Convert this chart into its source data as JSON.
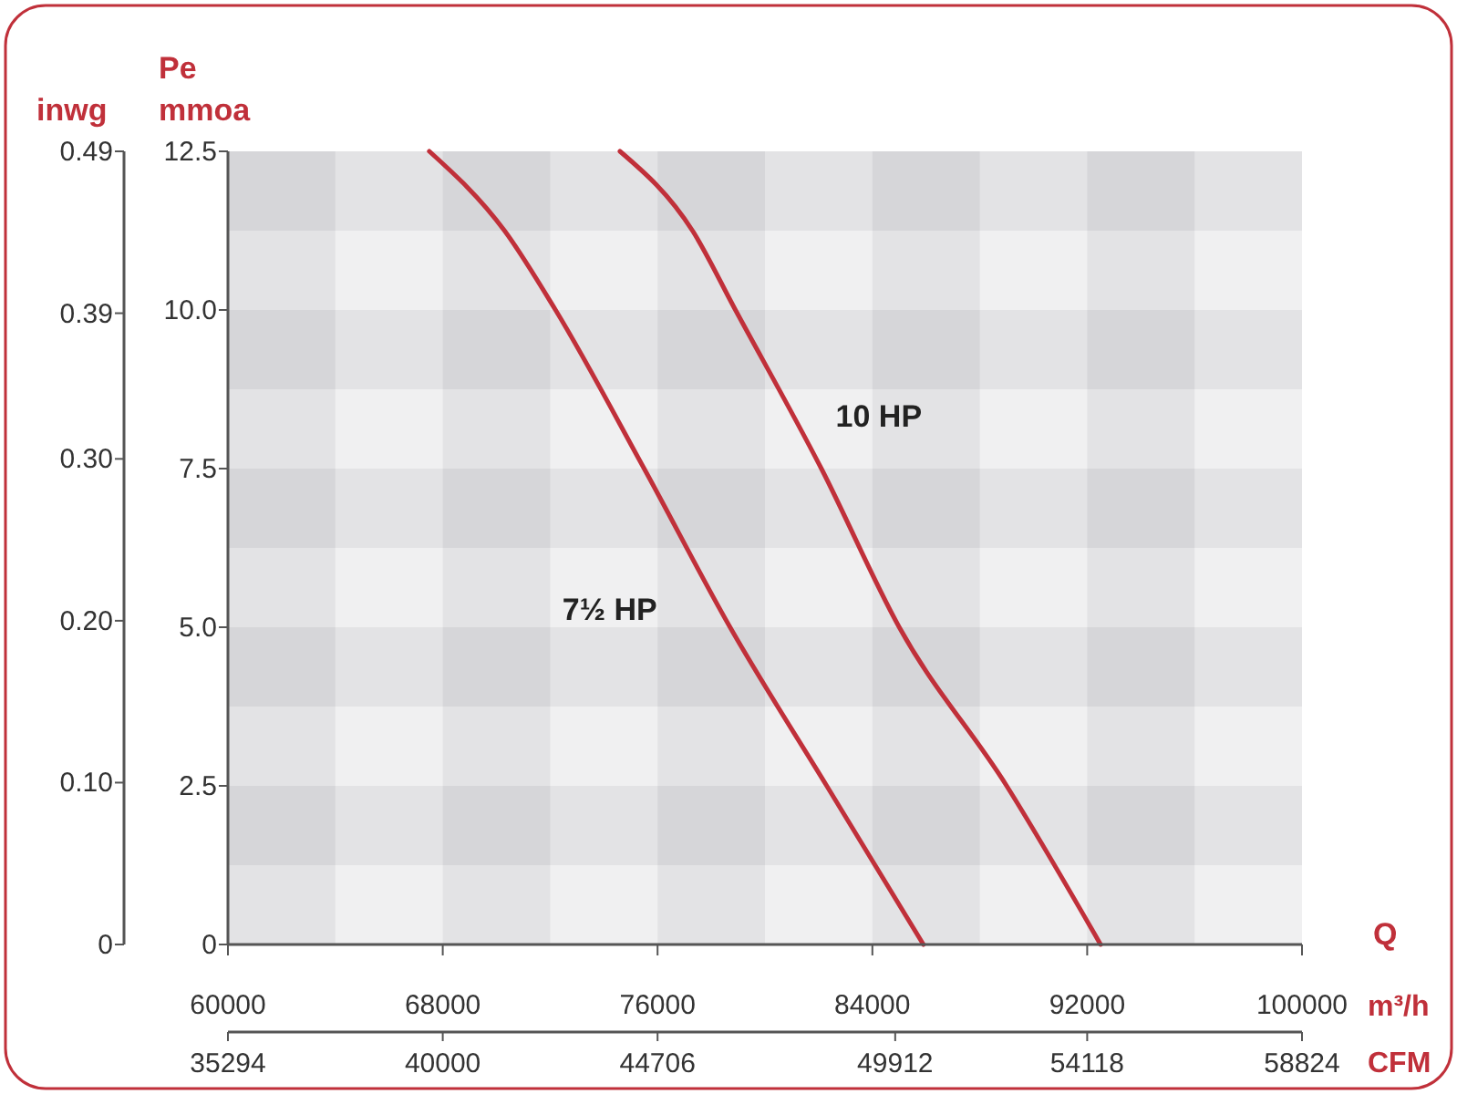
{
  "chart_data": {
    "type": "line",
    "xlabel": "m³/h",
    "x2label": "CFM",
    "ylabel": "Pe mmoa",
    "y2label": "inwg",
    "annotations": [
      "Q"
    ],
    "xlim": [
      60000,
      100000
    ],
    "xticks": [
      60000,
      68000,
      76000,
      84000,
      92000,
      100000
    ],
    "x2lim": [
      35294,
      58824
    ],
    "x2ticks": [
      35294,
      40000,
      44706,
      49912,
      54118,
      58824
    ],
    "ylim": [
      0,
      12.5
    ],
    "yticks": [
      {
        "value": 0,
        "label": "0"
      },
      {
        "value": 2.5,
        "label": "2.5"
      },
      {
        "value": 5,
        "label": "5.0"
      },
      {
        "value": 7.5,
        "label": "7.5"
      },
      {
        "value": 10,
        "label": "10.0"
      },
      {
        "value": 12.5,
        "label": "12.5"
      }
    ],
    "y2lim": [
      0,
      0.49
    ],
    "y2ticks": [
      0,
      {
        "value": 0.1,
        "label": "0.10"
      },
      {
        "value": 0.2,
        "label": "0.20"
      },
      {
        "value": 0.3,
        "label": "0.30"
      },
      0.39,
      0.49
    ],
    "series": [
      {
        "name": "7½ HP",
        "color": "#c0303a",
        "x": [
          67500,
          70300,
          72200,
          75500,
          78700,
          82300,
          85900
        ],
        "values": [
          12.5,
          11.25,
          10,
          7.5,
          5,
          2.5,
          0
        ]
      },
      {
        "name": "10 HP",
        "color": "#c0303a",
        "x": [
          74600,
          77300,
          78900,
          82100,
          85000,
          89000,
          92500
        ],
        "values": [
          12.5,
          11.25,
          10,
          7.5,
          5,
          2.5,
          0
        ]
      }
    ]
  }
}
